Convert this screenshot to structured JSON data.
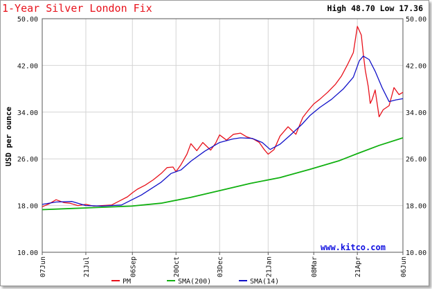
{
  "header": {
    "title": "1-Year Silver London Fix",
    "high_low": "High 48.70 Low 17.36"
  },
  "watermark": "www.kitco.com",
  "colors": {
    "pm": "#e8101a",
    "sma200": "#10b010",
    "sma14": "#1010c8",
    "title": "#e8101a",
    "watermark": "#1010e0"
  },
  "chart_data": {
    "type": "line",
    "ylabel": "USD per ounce",
    "ylim": [
      10,
      50
    ],
    "yticks": [
      "10.00",
      "18.00",
      "26.00",
      "34.00",
      "42.00",
      "50.00"
    ],
    "ytick_values": [
      10,
      18,
      26,
      34,
      42,
      50
    ],
    "xticks": [
      "07Jun",
      "21Jul",
      "06Sep",
      "20Oct",
      "03Dec",
      "21Jan",
      "08Mar",
      "21Apr",
      "06Jun"
    ],
    "xtick_days": [
      0,
      44,
      91,
      135,
      179,
      228,
      274,
      318,
      364
    ],
    "xlim_days": [
      0,
      364
    ],
    "grid": true,
    "legend_position": "bottom",
    "series": [
      {
        "name": "PM",
        "color": "#e8101a",
        "x": [
          0,
          7,
          14,
          22,
          28,
          36,
          44,
          52,
          60,
          70,
          78,
          86,
          91,
          96,
          104,
          112,
          120,
          126,
          132,
          135,
          140,
          146,
          150,
          156,
          162,
          170,
          175,
          179,
          186,
          193,
          200,
          206,
          213,
          219,
          224,
          228,
          234,
          240,
          248,
          256,
          263,
          268,
          274,
          280,
          288,
          296,
          302,
          308,
          314,
          318,
          322,
          324,
          326,
          329,
          331,
          333,
          336,
          340,
          344,
          350,
          355,
          360,
          364
        ],
        "y": [
          17.8,
          18.3,
          19.0,
          18.5,
          18.4,
          18.0,
          18.2,
          17.9,
          18.0,
          18.1,
          18.8,
          19.5,
          20.2,
          20.8,
          21.5,
          22.4,
          23.5,
          24.5,
          24.6,
          23.8,
          25.0,
          26.8,
          28.6,
          27.4,
          28.8,
          27.5,
          28.7,
          30.1,
          29.2,
          30.2,
          30.4,
          29.8,
          29.4,
          28.8,
          27.6,
          26.8,
          27.6,
          29.9,
          31.5,
          30.2,
          33.1,
          34.2,
          35.4,
          36.2,
          37.4,
          38.8,
          40.2,
          42.1,
          44.2,
          48.7,
          47.2,
          44.0,
          41.2,
          38.4,
          35.5,
          36.2,
          37.8,
          33.2,
          34.4,
          35.1,
          38.2,
          37.0,
          37.4
        ]
      },
      {
        "name": "SMA(200)",
        "color": "#10b010",
        "x": [
          0,
          30,
          60,
          90,
          120,
          150,
          180,
          210,
          240,
          270,
          300,
          318,
          340,
          364
        ],
        "y": [
          17.3,
          17.5,
          17.7,
          17.9,
          18.4,
          19.4,
          20.6,
          21.8,
          22.8,
          24.2,
          25.7,
          26.9,
          28.3,
          29.6
        ]
      },
      {
        "name": "SMA(14)",
        "color": "#1010c8",
        "x": [
          0,
          14,
          30,
          44,
          60,
          80,
          100,
          120,
          130,
          140,
          150,
          164,
          179,
          192,
          200,
          212,
          222,
          230,
          240,
          250,
          262,
          270,
          280,
          292,
          304,
          314,
          320,
          324,
          330,
          336,
          343,
          350,
          357,
          364
        ],
        "y": [
          18.2,
          18.6,
          18.7,
          18.0,
          17.9,
          18.1,
          19.8,
          22.0,
          23.5,
          24.1,
          25.6,
          27.3,
          28.8,
          29.4,
          29.6,
          29.5,
          28.8,
          27.6,
          28.5,
          30.0,
          31.9,
          33.4,
          34.8,
          36.2,
          38.0,
          40.0,
          42.8,
          43.6,
          43.0,
          41.0,
          38.2,
          35.8,
          36.1,
          36.3
        ]
      }
    ]
  }
}
